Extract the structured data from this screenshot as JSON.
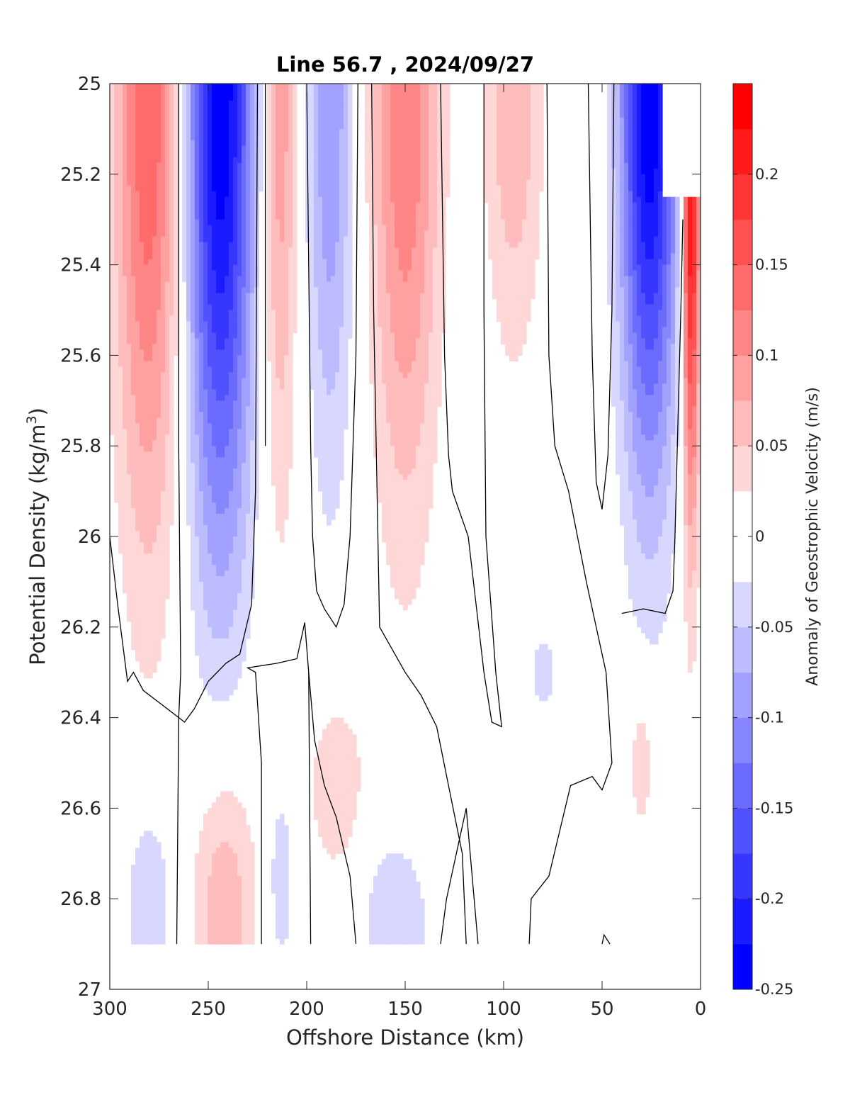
{
  "chart_data": {
    "type": "heatmap",
    "subtype": "filled-contour section",
    "title": "Line 56.7 , 2024/09/27",
    "xlabel": "Offshore Distance (km)",
    "ylabel": "Potential Density (kg/m",
    "ylabel_sup": "3",
    "ylabel_end": ")",
    "colorbar_label": "Anomaly of Geostrophic Velocity (m/s)",
    "xlim": [
      300,
      0
    ],
    "x_reversed": true,
    "ylim": [
      25,
      27
    ],
    "y_reversed": true,
    "xticks": [
      "300",
      "250",
      "200",
      "150",
      "100",
      "50",
      "0"
    ],
    "xtick_values": [
      300,
      250,
      200,
      150,
      100,
      50,
      0
    ],
    "yticks": [
      "25",
      "25.2",
      "25.4",
      "25.6",
      "25.8",
      "26",
      "26.2",
      "26.4",
      "26.6",
      "26.8",
      "27"
    ],
    "ytick_values": [
      25,
      25.2,
      25.4,
      25.6,
      25.8,
      26,
      26.2,
      26.4,
      26.6,
      26.8,
      27
    ],
    "colorbar_ticks": [
      "0.2",
      "0.15",
      "0.1",
      "0.05",
      "0",
      "-0.05",
      "-0.1",
      "-0.15",
      "-0.2",
      "-0.25"
    ],
    "colorbar_tick_values": [
      0.2,
      0.15,
      0.1,
      0.05,
      0,
      -0.05,
      -0.1,
      -0.15,
      -0.2,
      -0.25
    ],
    "clim": [
      -0.25,
      0.25
    ],
    "contour_interval": 0.025,
    "colormap": "blue-white-red",
    "colors": {
      "negative_max": "#0000ff",
      "zero": "#ffffff",
      "positive_max": "#ff0000",
      "zero_contour": "#000000"
    },
    "data_bottom_density": 26.9,
    "jets": [
      {
        "x_center": 280,
        "half_width": 19,
        "peak_anomaly": 0.15,
        "core_density": 25.0,
        "extends_to_density": 26.2
      },
      {
        "x_center": 244,
        "half_width": 19,
        "peak_anomaly": -0.25,
        "core_density": 25.0,
        "extends_to_density": 26.2
      },
      {
        "x_center": 214,
        "half_width": 10,
        "peak_anomaly": 0.1,
        "core_density": 25.0,
        "extends_to_density": 26.1
      },
      {
        "x_center": 188,
        "half_width": 13,
        "peak_anomaly": -0.1,
        "core_density": 25.0,
        "extends_to_density": 26.0
      },
      {
        "x_center": 150,
        "half_width": 19,
        "peak_anomaly": 0.125,
        "core_density": 25.0,
        "extends_to_density": 26.1
      },
      {
        "x_center": 95,
        "half_width": 16,
        "peak_anomaly": 0.075,
        "core_density": 25.0,
        "extends_to_density": 25.7
      },
      {
        "x_center": 26,
        "half_width": 16,
        "peak_anomaly": -0.25,
        "core_density": 25.0,
        "extends_to_density": 26.0
      },
      {
        "x_center": 5,
        "half_width": 5,
        "peak_anomaly": 0.25,
        "core_density": 25.2,
        "extends_to_density": 26.1
      },
      {
        "x_center": 280,
        "half_width": 14,
        "peak_anomaly": -0.05,
        "core_density": 26.8,
        "extends_to_density": 26.5
      },
      {
        "x_center": 242,
        "half_width": 18,
        "peak_anomaly": 0.075,
        "core_density": 26.8,
        "extends_to_density": 26.4
      },
      {
        "x_center": 213,
        "half_width": 7,
        "peak_anomaly": -0.05,
        "core_density": 26.75,
        "extends_to_density": 26.5
      },
      {
        "x_center": 185,
        "half_width": 16,
        "peak_anomaly": 0.05,
        "core_density": 26.55,
        "extends_to_density": 26.3
      },
      {
        "x_center": 155,
        "half_width": 20,
        "peak_anomaly": -0.05,
        "core_density": 26.85,
        "extends_to_density": 26.6
      },
      {
        "x_center": 80,
        "half_width": 7,
        "peak_anomaly": -0.05,
        "core_density": 26.3,
        "extends_to_density": 26.2
      },
      {
        "x_center": 30,
        "half_width": 7,
        "peak_anomaly": 0.05,
        "core_density": 26.5,
        "extends_to_density": 26.3
      }
    ],
    "blanked_region": {
      "x_range": [
        0,
        20
      ],
      "density_range": [
        25.0,
        25.25
      ]
    },
    "zero_contours": [
      {
        "name": "contour-0",
        "points": [
          [
            300,
            26.0
          ],
          [
            296,
            26.15
          ],
          [
            291,
            26.32
          ],
          [
            288,
            26.3
          ],
          [
            283,
            26.34
          ],
          [
            274,
            26.37
          ],
          [
            265,
            26.4
          ],
          [
            266,
            26.9
          ]
        ]
      },
      {
        "name": "contour-1",
        "points": [
          [
            265,
            25.0
          ],
          [
            265,
            25.8
          ],
          [
            264,
            26.3
          ],
          [
            265,
            26.4
          ],
          [
            262,
            26.41
          ],
          [
            257,
            26.38
          ],
          [
            250,
            26.32
          ],
          [
            241,
            26.28
          ],
          [
            234,
            26.26
          ],
          [
            228,
            26.15
          ],
          [
            226,
            25.9
          ],
          [
            225,
            25.0
          ]
        ]
      },
      {
        "name": "contour-2",
        "points": [
          [
            223,
            26.9
          ],
          [
            223,
            26.5
          ],
          [
            226,
            26.3
          ],
          [
            230,
            26.29
          ],
          [
            215,
            26.28
          ],
          [
            205,
            26.27
          ],
          [
            201,
            26.19
          ],
          [
            199,
            26.3
          ],
          [
            198,
            26.9
          ]
        ]
      },
      {
        "name": "contour-3",
        "points": [
          [
            221,
            25.0
          ],
          [
            221,
            25.8
          ],
          [
            221,
            25.5
          ],
          [
            221,
            25.0
          ]
        ]
      },
      {
        "name": "contour-4",
        "points": [
          [
            200,
            25.0
          ],
          [
            198,
            25.8
          ],
          [
            197,
            26.0
          ],
          [
            195,
            26.12
          ],
          [
            191,
            26.16
          ],
          [
            185,
            26.2
          ],
          [
            181,
            26.15
          ],
          [
            178,
            26.0
          ],
          [
            175,
            25.6
          ],
          [
            174,
            25.0
          ]
        ]
      },
      {
        "name": "contour-5",
        "points": [
          [
            175,
            26.9
          ],
          [
            178,
            26.75
          ],
          [
            185,
            26.62
          ],
          [
            191,
            26.55
          ],
          [
            196,
            26.45
          ],
          [
            198,
            26.35
          ],
          [
            199,
            26.3
          ]
        ]
      },
      {
        "name": "contour-6",
        "points": [
          [
            167,
            25.0
          ],
          [
            166,
            25.5
          ],
          [
            163,
            26.2
          ],
          [
            150,
            26.3
          ],
          [
            142,
            26.35
          ],
          [
            134,
            26.42
          ],
          [
            128,
            26.55
          ],
          [
            121,
            26.7
          ],
          [
            119,
            26.9
          ]
        ]
      },
      {
        "name": "contour-7",
        "points": [
          [
            132,
            25.0
          ],
          [
            130,
            25.6
          ],
          [
            128,
            25.82
          ],
          [
            126,
            25.9
          ],
          [
            118,
            26.0
          ],
          [
            110,
            26.3
          ],
          [
            106,
            26.41
          ],
          [
            101,
            26.42
          ],
          [
            104,
            26.3
          ],
          [
            109,
            26.0
          ],
          [
            110,
            25.5
          ],
          [
            110,
            25.0
          ]
        ]
      },
      {
        "name": "contour-8",
        "points": [
          [
            132,
            26.9
          ],
          [
            129,
            26.8
          ],
          [
            119,
            26.6
          ],
          [
            113,
            26.9
          ]
        ]
      },
      {
        "name": "contour-9",
        "points": [
          [
            78,
            25.0
          ],
          [
            77,
            25.6
          ],
          [
            74,
            25.8
          ],
          [
            67,
            25.9
          ],
          [
            58,
            26.1
          ],
          [
            48,
            26.3
          ],
          [
            45,
            26.5
          ],
          [
            50,
            26.56
          ],
          [
            55,
            26.53
          ],
          [
            66,
            26.55
          ],
          [
            77,
            26.75
          ],
          [
            86,
            26.8
          ],
          [
            87,
            26.9
          ]
        ]
      },
      {
        "name": "contour-10",
        "points": [
          [
            57,
            25.0
          ],
          [
            55,
            25.6
          ],
          [
            53,
            25.88
          ],
          [
            50,
            25.94
          ],
          [
            47,
            25.82
          ],
          [
            45,
            25.5
          ],
          [
            44,
            25.0
          ]
        ]
      },
      {
        "name": "contour-11",
        "points": [
          [
            40,
            26.17
          ],
          [
            29,
            26.16
          ],
          [
            18,
            26.17
          ],
          [
            14,
            26.12
          ],
          [
            13,
            26.0
          ],
          [
            10,
            25.5
          ],
          [
            9,
            25.3
          ]
        ]
      },
      {
        "name": "contour-12",
        "points": [
          [
            50,
            26.9
          ],
          [
            49,
            26.88
          ],
          [
            46,
            26.9
          ]
        ]
      }
    ]
  }
}
